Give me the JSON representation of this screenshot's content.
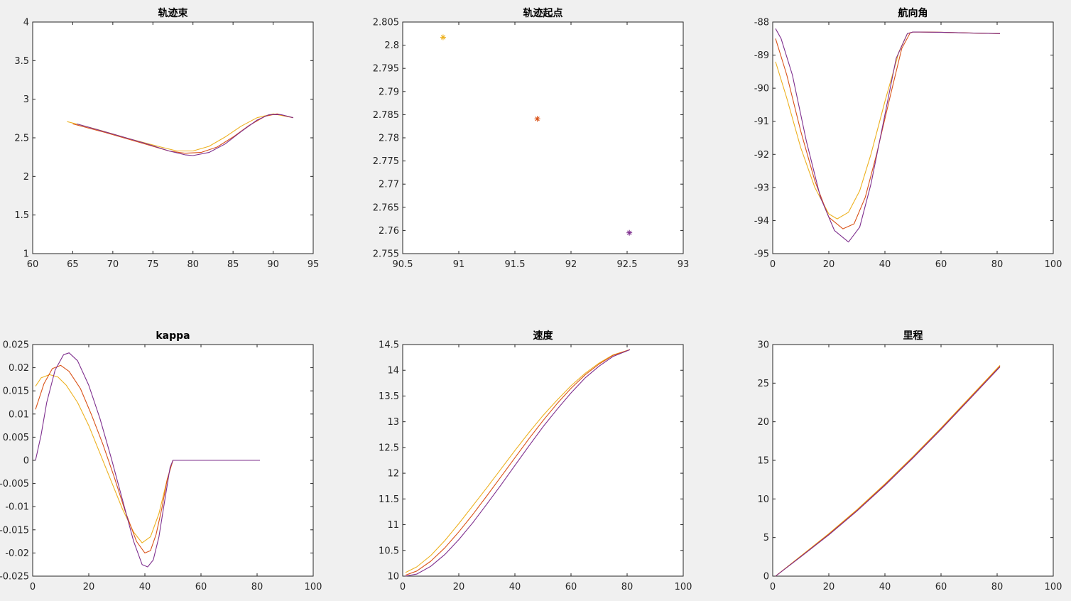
{
  "colors": {
    "yellow": "#EDB120",
    "orange": "#D95319",
    "purple": "#7E2F8E",
    "axis": "#262626",
    "figure_bg": "#f0f0f0"
  },
  "chart_data": [
    {
      "type": "line",
      "title": "轨迹束",
      "xlim": [
        60,
        95
      ],
      "ylim": [
        1,
        4
      ],
      "xticks": [
        60,
        65,
        70,
        75,
        80,
        85,
        90,
        95
      ],
      "yticks": [
        1,
        1.5,
        2,
        2.5,
        3,
        3.5,
        4
      ],
      "xticklabels": [
        "60",
        "65",
        "70",
        "75",
        "80",
        "85",
        "90",
        "95"
      ],
      "yticklabels": [
        "1",
        "1.5",
        "2",
        "2.5",
        "3",
        "3.5",
        "4"
      ],
      "series": [
        {
          "color": "#EDB120",
          "x": [
            64.3,
            68,
            72,
            76,
            78,
            80,
            82,
            84,
            86,
            88,
            90,
            92.5
          ],
          "y": [
            2.71,
            2.61,
            2.49,
            2.38,
            2.33,
            2.33,
            2.39,
            2.51,
            2.65,
            2.76,
            2.81,
            2.76
          ]
        },
        {
          "color": "#D95319",
          "x": [
            65,
            69,
            73,
            77,
            79,
            81,
            83,
            85,
            87,
            89,
            90.5,
            92.5
          ],
          "y": [
            2.68,
            2.57,
            2.45,
            2.33,
            2.3,
            2.31,
            2.38,
            2.51,
            2.66,
            2.78,
            2.81,
            2.76
          ]
        },
        {
          "color": "#7E2F8E",
          "x": [
            65.5,
            70,
            74,
            77,
            79,
            80,
            82,
            84,
            86,
            88,
            89.5,
            91,
            92.5
          ],
          "y": [
            2.68,
            2.55,
            2.43,
            2.33,
            2.28,
            2.27,
            2.31,
            2.42,
            2.58,
            2.73,
            2.8,
            2.8,
            2.76
          ]
        }
      ]
    },
    {
      "type": "scatter",
      "title": "轨迹起点",
      "xlim": [
        90.5,
        93
      ],
      "ylim": [
        2.755,
        2.805
      ],
      "xticks": [
        90.5,
        91,
        91.5,
        92,
        92.5,
        93
      ],
      "yticks": [
        2.755,
        2.76,
        2.765,
        2.77,
        2.775,
        2.78,
        2.785,
        2.79,
        2.795,
        2.8,
        2.805
      ],
      "xticklabels": [
        "90.5",
        "91",
        "91.5",
        "92",
        "92.5",
        "93"
      ],
      "yticklabels": [
        "2.755",
        "2.76",
        "2.765",
        "2.77",
        "2.775",
        "2.78",
        "2.785",
        "2.79",
        "2.795",
        "2.8",
        "2.805"
      ],
      "marker": "*",
      "points": [
        {
          "color": "#EDB120",
          "x": 90.86,
          "y": 2.8017
        },
        {
          "color": "#D95319",
          "x": 91.7,
          "y": 2.7841
        },
        {
          "color": "#7E2F8E",
          "x": 92.52,
          "y": 2.7595
        }
      ]
    },
    {
      "type": "line",
      "title": "航向角",
      "xlim": [
        0,
        100
      ],
      "ylim": [
        -95,
        -88
      ],
      "xticks": [
        0,
        20,
        40,
        60,
        80,
        100
      ],
      "yticks": [
        -95,
        -94,
        -93,
        -92,
        -91,
        -90,
        -89,
        -88
      ],
      "xticklabels": [
        "0",
        "20",
        "40",
        "60",
        "80",
        "100"
      ],
      "yticklabels": [
        "-95",
        "-94",
        "-93",
        "-92",
        "-91",
        "-90",
        "-89",
        "-88"
      ],
      "series": [
        {
          "color": "#EDB120",
          "x": [
            1,
            5,
            10,
            15,
            20,
            23,
            27,
            31,
            35,
            40,
            45,
            48,
            50,
            60,
            70,
            81
          ],
          "y": [
            -89.2,
            -90.3,
            -91.8,
            -93.0,
            -93.8,
            -93.95,
            -93.75,
            -93.1,
            -92.0,
            -90.4,
            -88.9,
            -88.35,
            -88.3,
            -88.31,
            -88.33,
            -88.35
          ]
        },
        {
          "color": "#D95319",
          "x": [
            1,
            5,
            10,
            15,
            20,
            25,
            29,
            33,
            37,
            42,
            46,
            49,
            50,
            60,
            70,
            81
          ],
          "y": [
            -88.5,
            -89.6,
            -91.3,
            -92.8,
            -93.9,
            -94.25,
            -94.1,
            -93.3,
            -92.0,
            -90.2,
            -88.8,
            -88.33,
            -88.3,
            -88.31,
            -88.33,
            -88.35
          ]
        },
        {
          "color": "#7E2F8E",
          "x": [
            1,
            3,
            7,
            12,
            17,
            22,
            27,
            31,
            35,
            40,
            44,
            48,
            50,
            60,
            70,
            81
          ],
          "y": [
            -88.2,
            -88.5,
            -89.6,
            -91.6,
            -93.3,
            -94.3,
            -94.65,
            -94.2,
            -92.9,
            -90.8,
            -89.1,
            -88.35,
            -88.3,
            -88.31,
            -88.33,
            -88.35
          ]
        }
      ]
    },
    {
      "type": "line",
      "title": "kappa",
      "xlim": [
        0,
        100
      ],
      "ylim": [
        -0.025,
        0.025
      ],
      "xticks": [
        0,
        20,
        40,
        60,
        80,
        100
      ],
      "yticks": [
        -0.025,
        -0.02,
        -0.015,
        -0.01,
        -0.005,
        0,
        0.005,
        0.01,
        0.015,
        0.02,
        0.025
      ],
      "xticklabels": [
        "0",
        "20",
        "40",
        "60",
        "80",
        "100"
      ],
      "yticklabels": [
        "-0.025",
        "-0.02",
        "-0.015",
        "-0.01",
        "-0.005",
        "0",
        "0.005",
        "0.01",
        "0.015",
        "0.02",
        "0.025"
      ],
      "series": [
        {
          "color": "#EDB120",
          "x": [
            1,
            3,
            6,
            9,
            12,
            16,
            20,
            24,
            28,
            32,
            36,
            39,
            42,
            45,
            48,
            50,
            60,
            70,
            81
          ],
          "y": [
            0.016,
            0.0178,
            0.0185,
            0.018,
            0.0162,
            0.0125,
            0.0075,
            0.0015,
            -0.0045,
            -0.0105,
            -0.0155,
            -0.0178,
            -0.0165,
            -0.0115,
            -0.004,
            0,
            0,
            0,
            0
          ]
        },
        {
          "color": "#D95319",
          "x": [
            1,
            4,
            7,
            10,
            13,
            17,
            21,
            25,
            29,
            33,
            37,
            40,
            42,
            44,
            46,
            48,
            50,
            60,
            70,
            81
          ],
          "y": [
            0.011,
            0.0165,
            0.0198,
            0.0205,
            0.0192,
            0.0155,
            0.0098,
            0.0035,
            -0.0035,
            -0.011,
            -0.0175,
            -0.02,
            -0.0195,
            -0.016,
            -0.0105,
            -0.004,
            0,
            0,
            0,
            0
          ]
        },
        {
          "color": "#7E2F8E",
          "x": [
            1,
            3,
            5,
            8,
            11,
            13,
            16,
            20,
            24,
            28,
            32,
            36,
            39,
            41,
            43,
            45,
            47,
            49,
            50,
            60,
            70,
            81
          ],
          "y": [
            0,
            0.0055,
            0.0125,
            0.0195,
            0.0228,
            0.0232,
            0.0215,
            0.0162,
            0.009,
            0.0005,
            -0.0085,
            -0.0175,
            -0.0225,
            -0.023,
            -0.0215,
            -0.0165,
            -0.009,
            -0.0015,
            0,
            0,
            0,
            0
          ]
        }
      ]
    },
    {
      "type": "line",
      "title": "速度",
      "xlim": [
        0,
        100
      ],
      "ylim": [
        10,
        14.5
      ],
      "xticks": [
        0,
        20,
        40,
        60,
        80,
        100
      ],
      "yticks": [
        10,
        10.5,
        11,
        11.5,
        12,
        12.5,
        13,
        13.5,
        14,
        14.5
      ],
      "xticklabels": [
        "0",
        "20",
        "40",
        "60",
        "80",
        "100"
      ],
      "yticklabels": [
        "10",
        "10.5",
        "11",
        "11.5",
        "12",
        "12.5",
        "13",
        "13.5",
        "14",
        "14.5"
      ],
      "series": [
        {
          "color": "#EDB120",
          "x": [
            1,
            5,
            10,
            15,
            20,
            25,
            30,
            35,
            40,
            45,
            50,
            55,
            60,
            65,
            70,
            75,
            81
          ],
          "y": [
            10.07,
            10.18,
            10.4,
            10.69,
            11.02,
            11.37,
            11.72,
            12.08,
            12.44,
            12.79,
            13.12,
            13.42,
            13.7,
            13.94,
            14.14,
            14.3,
            14.4
          ]
        },
        {
          "color": "#D95319",
          "x": [
            1,
            5,
            10,
            15,
            20,
            25,
            30,
            35,
            40,
            45,
            50,
            55,
            60,
            65,
            70,
            75,
            81
          ],
          "y": [
            10.02,
            10.1,
            10.29,
            10.55,
            10.86,
            11.2,
            11.56,
            11.93,
            12.3,
            12.67,
            13.02,
            13.35,
            13.65,
            13.91,
            14.12,
            14.29,
            14.4
          ]
        },
        {
          "color": "#7E2F8E",
          "x": [
            1,
            5,
            10,
            15,
            20,
            25,
            30,
            35,
            40,
            45,
            50,
            55,
            60,
            65,
            70,
            75,
            81
          ],
          "y": [
            10.0,
            10.04,
            10.19,
            10.42,
            10.71,
            11.04,
            11.4,
            11.77,
            12.15,
            12.53,
            12.9,
            13.24,
            13.56,
            13.85,
            14.08,
            14.27,
            14.4
          ]
        }
      ]
    },
    {
      "type": "line",
      "title": "里程",
      "xlim": [
        0,
        100
      ],
      "ylim": [
        0,
        30
      ],
      "xticks": [
        0,
        20,
        40,
        60,
        80,
        100
      ],
      "yticks": [
        0,
        5,
        10,
        15,
        20,
        25,
        30
      ],
      "xticklabels": [
        "0",
        "20",
        "40",
        "60",
        "80",
        "100"
      ],
      "yticklabels": [
        "0",
        "5",
        "10",
        "15",
        "20",
        "25",
        "30"
      ],
      "series": [
        {
          "color": "#EDB120",
          "x": [
            1,
            10,
            20,
            30,
            40,
            50,
            60,
            70,
            81
          ],
          "y": [
            0,
            2.6,
            5.5,
            8.6,
            11.95,
            15.5,
            19.2,
            23.05,
            27.3
          ]
        },
        {
          "color": "#D95319",
          "x": [
            1,
            10,
            20,
            30,
            40,
            50,
            60,
            70,
            81
          ],
          "y": [
            0,
            2.55,
            5.42,
            8.5,
            11.85,
            15.4,
            19.1,
            22.95,
            27.2
          ]
        },
        {
          "color": "#7E2F8E",
          "x": [
            1,
            10,
            20,
            30,
            40,
            50,
            60,
            70,
            81
          ],
          "y": [
            0,
            2.5,
            5.35,
            8.42,
            11.75,
            15.3,
            19.0,
            22.85,
            27.1
          ]
        }
      ]
    }
  ]
}
